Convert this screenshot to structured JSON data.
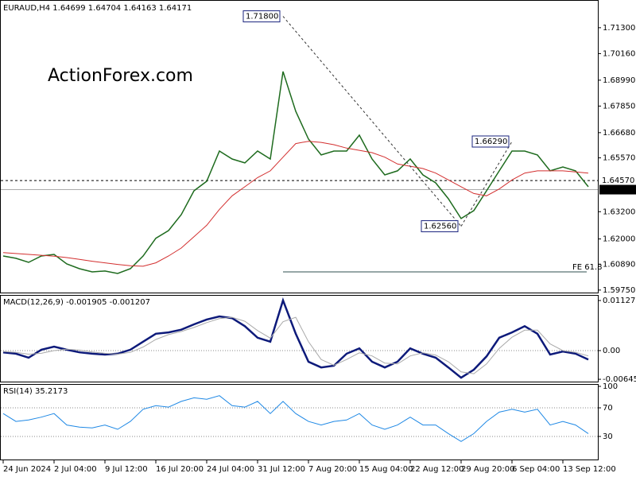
{
  "chart_data": [
    {
      "type": "line",
      "title": "EURAUD,H4 1.64699 1.64704 1.64163 1.64171",
      "watermark": "ActionForex.com",
      "ylim": [
        1.5964,
        1.7252
      ],
      "yticks": [
        {
          "value": 1.713,
          "label": "1.71300"
        },
        {
          "value": 1.7016,
          "label": "1.70160"
        },
        {
          "value": 1.6899,
          "label": "1.68990"
        },
        {
          "value": 1.6785,
          "label": "1.67850"
        },
        {
          "value": 1.6668,
          "label": "1.66680"
        },
        {
          "value": 1.6557,
          "label": "1.65570"
        },
        {
          "value": 1.632,
          "label": "1.63200"
        },
        {
          "value": 1.62,
          "label": "1.62000"
        },
        {
          "value": 1.6089,
          "label": "1.60890"
        },
        {
          "value": 1.5975,
          "label": "1.59750"
        }
      ],
      "series": [
        {
          "color": "#1e6b1e",
          "values": [
            1.6125,
            1.6115,
            1.6097,
            1.6125,
            1.6132,
            1.609,
            1.6069,
            1.6055,
            1.6059,
            1.6048,
            1.6069,
            1.6125,
            1.6203,
            1.6237,
            1.6307,
            1.6412,
            1.6454,
            1.6587,
            1.6552,
            1.6535,
            1.6587,
            1.6552,
            1.6937,
            1.6762,
            1.664,
            1.657,
            1.6587,
            1.6587,
            1.6657,
            1.6552,
            1.6482,
            1.65,
            1.6552,
            1.6482,
            1.6447,
            1.6377,
            1.629,
            1.6325,
            1.6412,
            1.65,
            1.6587,
            1.6587,
            1.657,
            1.65,
            1.6517,
            1.65,
            1.643
          ]
        },
        {
          "color": "#d32f2f",
          "values": [
            1.614,
            1.6136,
            1.6132,
            1.6128,
            1.6124,
            1.6118,
            1.611,
            1.6102,
            1.6095,
            1.6088,
            1.6082,
            1.608,
            1.6095,
            1.6125,
            1.616,
            1.621,
            1.626,
            1.633,
            1.639,
            1.643,
            1.647,
            1.65,
            1.656,
            1.662,
            1.663,
            1.6625,
            1.6615,
            1.66,
            1.659,
            1.658,
            1.656,
            1.653,
            1.652,
            1.651,
            1.649,
            1.646,
            1.643,
            1.64,
            1.639,
            1.642,
            1.646,
            1.649,
            1.65,
            1.65,
            1.65,
            1.6495,
            1.649
          ]
        }
      ],
      "levels": [
        {
          "value": 1.6457,
          "label": "1.64570",
          "style": "dashed"
        },
        {
          "value": 1.64171,
          "label": "1.64171",
          "style": "current"
        }
      ],
      "fe": {
        "value": 1.6055,
        "label": "FE 61.8",
        "from": 22
      },
      "pivots": [
        {
          "label": "1.71800",
          "value": 1.718,
          "at": 22
        },
        {
          "label": "1.62560",
          "value": 1.6256,
          "at": 36
        },
        {
          "label": "1.66290",
          "value": 1.6629,
          "at": 40
        }
      ]
    },
    {
      "type": "line",
      "title": "MACD(12,26,9) -0.001905 -0.001207",
      "ylim": [
        -0.006977,
        0.012344
      ],
      "yticks": [
        0.011271,
        {
          "value": 0,
          "label": "0.00"
        },
        -0.006453
      ],
      "zero_line": true,
      "series": [
        {
          "color": "#0d1a7a",
          "values": [
            -0.0004,
            -0.0007,
            -0.0016,
            0.0002,
            0.0009,
            0.0002,
            -0.0004,
            -0.0007,
            -0.0009,
            -0.0007,
            0.0002,
            0.002,
            0.0038,
            0.0041,
            0.0047,
            0.0059,
            0.007,
            0.0077,
            0.0073,
            0.0055,
            0.0029,
            0.002,
            0.0113,
            0.0038,
            -0.0025,
            -0.0038,
            -0.0034,
            -0.0007,
            0.0005,
            -0.0025,
            -0.0038,
            -0.0025,
            0.0005,
            -0.0007,
            -0.0016,
            -0.0038,
            -0.0061,
            -0.0043,
            -0.0013,
            0.0029,
            0.0041,
            0.0055,
            0.0038,
            -0.0009,
            -0.0002,
            -0.0007,
            -0.002
          ]
        },
        {
          "color": "#aaaaaa",
          "values": [
            -0.0002,
            -0.0004,
            -0.0008,
            -0.0006,
            0,
            0.0003,
            0.0001,
            -0.0003,
            -0.0006,
            -0.0008,
            -0.0004,
            0.0008,
            0.0025,
            0.0036,
            0.0043,
            0.0052,
            0.0063,
            0.0072,
            0.0075,
            0.0066,
            0.0045,
            0.0028,
            0.0065,
            0.0075,
            0.002,
            -0.002,
            -0.0033,
            -0.002,
            -0.0005,
            -0.0012,
            -0.0028,
            -0.003,
            -0.0012,
            -0.0005,
            -0.001,
            -0.0025,
            -0.0048,
            -0.0052,
            -0.003,
            0.0005,
            0.003,
            0.0046,
            0.0046,
            0.0015,
            0,
            -0.0004,
            -0.0012
          ]
        }
      ]
    },
    {
      "type": "line",
      "title": "RSI(14) 35.2173",
      "ylim": [
        0,
        100
      ],
      "yticks": [
        100,
        70,
        30
      ],
      "grid": true,
      "categories": [
        "24 Jun 2024",
        null,
        null,
        null,
        "2 Jul 04:00",
        null,
        null,
        null,
        "9 Jul 12:00",
        null,
        null,
        null,
        "16 Jul 20:00",
        null,
        null,
        null,
        "24 Jul 04:00",
        null,
        null,
        null,
        "31 Jul 12:00",
        null,
        null,
        null,
        "7 Aug 20:00",
        null,
        null,
        null,
        "15 Aug 04:00",
        null,
        null,
        null,
        "22 Aug 12:00",
        null,
        null,
        null,
        "29 Aug 20:00",
        null,
        null,
        null,
        "6 Sep 04:00",
        null,
        null,
        null,
        "13 Sep 12:00",
        null,
        null
      ],
      "series": [
        {
          "color": "#1e88e5",
          "values": [
            62,
            51,
            53,
            57,
            62,
            46,
            43,
            42,
            46,
            40,
            51,
            68,
            73,
            71,
            79,
            84,
            82,
            87,
            73,
            71,
            79,
            62,
            79,
            62,
            51,
            46,
            51,
            53,
            62,
            46,
            40,
            46,
            57,
            46,
            46,
            34,
            23,
            34,
            51,
            64,
            68,
            64,
            68,
            46,
            51,
            46,
            34
          ]
        }
      ]
    }
  ]
}
